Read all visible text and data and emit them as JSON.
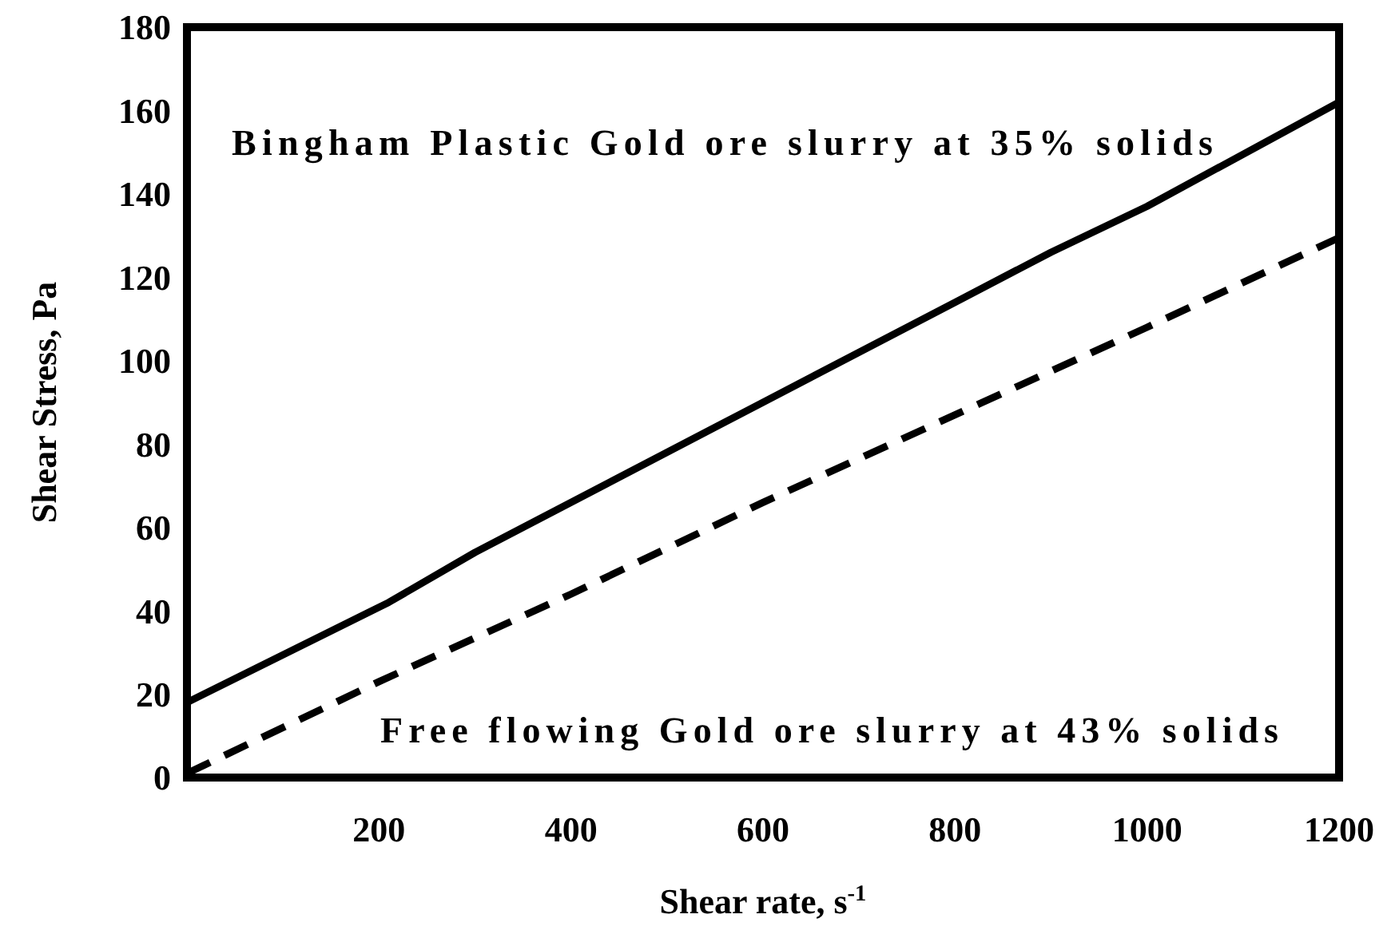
{
  "chart_data": {
    "type": "line",
    "xlabel": "Shear rate, s$^{-1}$",
    "ylabel": "Shear Stress, Pa",
    "xlim": [
      0,
      1200
    ],
    "ylim": [
      0,
      180
    ],
    "xticks": [
      200,
      400,
      600,
      800,
      1000,
      1200
    ],
    "yticks": [
      0,
      20,
      40,
      60,
      80,
      100,
      120,
      140,
      160,
      180
    ],
    "grid": false,
    "marker": "none",
    "series": [
      {
        "name": "Bingham Plastic Gold ore slurry at 35% solids",
        "color": "#000000",
        "line_style": "solid",
        "x": [
          0,
          210,
          300,
          550,
          800,
          900,
          1000,
          1200
        ],
        "values": [
          18,
          42,
          54,
          84,
          114,
          126,
          137,
          162
        ]
      },
      {
        "name": "Free flowing Gold ore slurry at 43% solids",
        "color": "#000000",
        "line_style": "dashed",
        "x": [
          0,
          200,
          400,
          600,
          800,
          1000,
          1200
        ],
        "values": [
          1,
          23,
          44,
          66,
          87,
          108,
          129.5
        ]
      }
    ]
  }
}
